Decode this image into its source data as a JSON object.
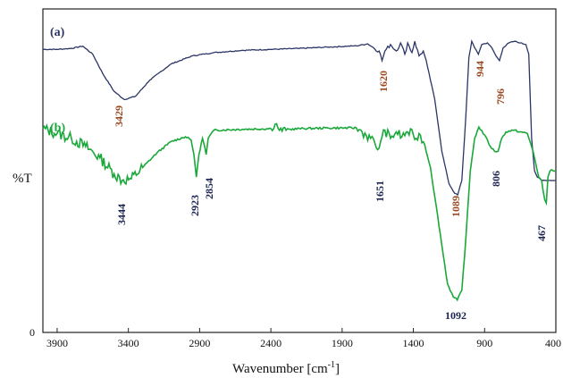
{
  "chart_data": {
    "type": "line",
    "title": "",
    "xlabel": "Wavenumber [cm",
    "xlabel_sup": "-1",
    "xlabel_close": "]",
    "ylabel": "%T",
    "xlim": [
      4000,
      400
    ],
    "x_reversed": true,
    "ylim": [
      0,
      1
    ],
    "y_ticks": [
      "0"
    ],
    "x_ticks": [
      "3900",
      "3400",
      "2900",
      "2400",
      "1900",
      "1400",
      "900",
      "400"
    ],
    "grid": false,
    "colors": {
      "a": "#2b3566",
      "b": "#1aa83a",
      "a_labels": "#9a4a22",
      "b_labels": "#1c2450"
    },
    "series": [
      {
        "name": "(a)",
        "color": "#2b3566",
        "peaks": [
          "3429",
          "1620",
          "944",
          "796",
          "1089"
        ],
        "points": [
          [
            4000,
            0.875
          ],
          [
            3900,
            0.875
          ],
          [
            3800,
            0.878
          ],
          [
            3720,
            0.885
          ],
          [
            3650,
            0.86
          ],
          [
            3580,
            0.8
          ],
          [
            3500,
            0.745
          ],
          [
            3429,
            0.72
          ],
          [
            3350,
            0.73
          ],
          [
            3250,
            0.78
          ],
          [
            3100,
            0.83
          ],
          [
            2950,
            0.855
          ],
          [
            2800,
            0.865
          ],
          [
            2600,
            0.872
          ],
          [
            2400,
            0.875
          ],
          [
            2200,
            0.878
          ],
          [
            2000,
            0.882
          ],
          [
            1800,
            0.886
          ],
          [
            1720,
            0.892
          ],
          [
            1680,
            0.88
          ],
          [
            1640,
            0.87
          ],
          [
            1620,
            0.84
          ],
          [
            1600,
            0.87
          ],
          [
            1560,
            0.89
          ],
          [
            1520,
            0.87
          ],
          [
            1490,
            0.895
          ],
          [
            1460,
            0.86
          ],
          [
            1440,
            0.895
          ],
          [
            1410,
            0.865
          ],
          [
            1390,
            0.9
          ],
          [
            1360,
            0.855
          ],
          [
            1330,
            0.87
          ],
          [
            1300,
            0.82
          ],
          [
            1250,
            0.72
          ],
          [
            1200,
            0.56
          ],
          [
            1150,
            0.46
          ],
          [
            1110,
            0.43
          ],
          [
            1089,
            0.425
          ],
          [
            1060,
            0.47
          ],
          [
            1030,
            0.68
          ],
          [
            1010,
            0.85
          ],
          [
            990,
            0.9
          ],
          [
            970,
            0.88
          ],
          [
            944,
            0.86
          ],
          [
            920,
            0.89
          ],
          [
            880,
            0.895
          ],
          [
            850,
            0.88
          ],
          [
            820,
            0.855
          ],
          [
            796,
            0.84
          ],
          [
            770,
            0.88
          ],
          [
            730,
            0.895
          ],
          [
            690,
            0.9
          ],
          [
            650,
            0.895
          ],
          [
            610,
            0.89
          ],
          [
            590,
            0.86
          ],
          [
            570,
            0.6
          ],
          [
            550,
            0.5
          ],
          [
            530,
            0.48
          ],
          [
            500,
            0.47
          ],
          [
            470,
            0.47
          ],
          [
            440,
            0.47
          ],
          [
            400,
            0.47
          ]
        ]
      },
      {
        "name": "(b)",
        "color": "#1aa83a",
        "peaks": [
          "3444",
          "2923",
          "2854",
          "1651",
          "1092",
          "806",
          "467"
        ],
        "points": [
          [
            4000,
            0.63
          ],
          [
            3900,
            0.615
          ],
          [
            3800,
            0.6
          ],
          [
            3700,
            0.575
          ],
          [
            3600,
            0.54
          ],
          [
            3500,
            0.49
          ],
          [
            3444,
            0.47
          ],
          [
            3380,
            0.475
          ],
          [
            3300,
            0.51
          ],
          [
            3200,
            0.555
          ],
          [
            3100,
            0.59
          ],
          [
            3000,
            0.605
          ],
          [
            2960,
            0.595
          ],
          [
            2940,
            0.55
          ],
          [
            2923,
            0.48
          ],
          [
            2905,
            0.55
          ],
          [
            2880,
            0.6
          ],
          [
            2865,
            0.575
          ],
          [
            2854,
            0.55
          ],
          [
            2840,
            0.6
          ],
          [
            2800,
            0.625
          ],
          [
            2600,
            0.628
          ],
          [
            2400,
            0.63
          ],
          [
            2360,
            0.645
          ],
          [
            2340,
            0.625
          ],
          [
            2200,
            0.63
          ],
          [
            2000,
            0.632
          ],
          [
            1800,
            0.632
          ],
          [
            1760,
            0.62
          ],
          [
            1700,
            0.6
          ],
          [
            1670,
            0.585
          ],
          [
            1651,
            0.565
          ],
          [
            1630,
            0.59
          ],
          [
            1600,
            0.625
          ],
          [
            1560,
            0.6
          ],
          [
            1520,
            0.62
          ],
          [
            1480,
            0.605
          ],
          [
            1440,
            0.62
          ],
          [
            1400,
            0.61
          ],
          [
            1380,
            0.6
          ],
          [
            1350,
            0.61
          ],
          [
            1320,
            0.58
          ],
          [
            1280,
            0.51
          ],
          [
            1250,
            0.42
          ],
          [
            1200,
            0.27
          ],
          [
            1160,
            0.15
          ],
          [
            1120,
            0.11
          ],
          [
            1092,
            0.1
          ],
          [
            1060,
            0.13
          ],
          [
            1030,
            0.3
          ],
          [
            1000,
            0.5
          ],
          [
            970,
            0.6
          ],
          [
            940,
            0.635
          ],
          [
            900,
            0.61
          ],
          [
            860,
            0.575
          ],
          [
            830,
            0.56
          ],
          [
            806,
            0.56
          ],
          [
            780,
            0.6
          ],
          [
            750,
            0.62
          ],
          [
            700,
            0.625
          ],
          [
            650,
            0.62
          ],
          [
            600,
            0.615
          ],
          [
            560,
            0.56
          ],
          [
            540,
            0.52
          ],
          [
            520,
            0.48
          ],
          [
            500,
            0.47
          ],
          [
            490,
            0.44
          ],
          [
            478,
            0.41
          ],
          [
            467,
            0.4
          ],
          [
            455,
            0.48
          ],
          [
            440,
            0.5
          ],
          [
            420,
            0.5
          ],
          [
            400,
            0.5
          ]
        ]
      }
    ]
  }
}
